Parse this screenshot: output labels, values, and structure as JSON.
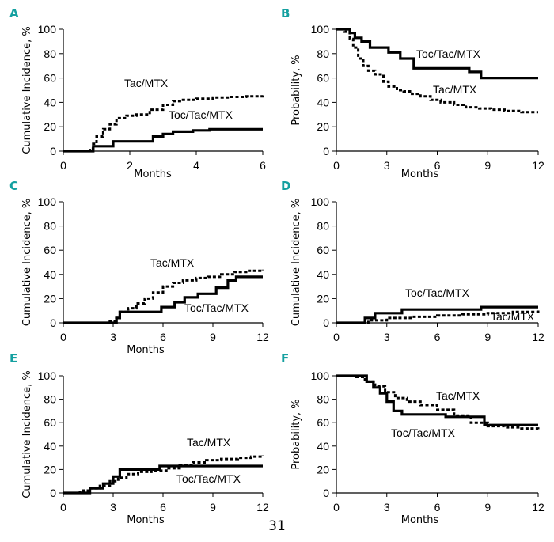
{
  "page_number": "31",
  "colors": {
    "panel_letter": "#14a0a0",
    "line": "#000000"
  },
  "chart_data": [
    {
      "panel": "A",
      "type": "line",
      "xlabel": "Months",
      "ylabel": "Cumulative Incidence, %",
      "xlim": [
        0,
        6
      ],
      "ylim": [
        0,
        100
      ],
      "xticks": [
        0,
        2,
        4,
        6
      ],
      "yticks": [
        0,
        20,
        40,
        60,
        80,
        100
      ],
      "grid": false,
      "series": [
        {
          "name": "Tac/MTX",
          "style": "dashed",
          "x": [
            0,
            0.8,
            0.9,
            1.0,
            1.2,
            1.4,
            1.6,
            1.9,
            2.2,
            2.6,
            3.0,
            3.3,
            3.6,
            4.0,
            4.5,
            5.0,
            5.5,
            6.0
          ],
          "y": [
            0,
            2,
            6,
            12,
            18,
            22,
            27,
            29,
            30,
            34,
            38,
            41,
            42,
            43,
            44,
            44.5,
            45,
            46
          ]
        },
        {
          "name": "Toc/Tac/MTX",
          "style": "solid",
          "x": [
            0,
            0.9,
            1.5,
            2.7,
            3.0,
            3.3,
            3.9,
            4.4,
            6.0
          ],
          "y": [
            0,
            4,
            8,
            12,
            14,
            16,
            17,
            18,
            18
          ]
        }
      ]
    },
    {
      "panel": "B",
      "type": "line",
      "xlabel": "Months",
      "ylabel": "Probability, %",
      "xlim": [
        0,
        12
      ],
      "ylim": [
        0,
        100
      ],
      "xticks": [
        0,
        3,
        6,
        9,
        12
      ],
      "yticks": [
        0,
        20,
        40,
        60,
        80,
        100
      ],
      "grid": false,
      "series": [
        {
          "name": "Toc/Tac/MTX",
          "style": "solid",
          "x": [
            0,
            0.8,
            1.1,
            1.5,
            2.0,
            3.1,
            3.8,
            4.6,
            6.5,
            7.9,
            8.6,
            12.0
          ],
          "y": [
            100,
            97,
            93,
            90,
            85,
            81,
            76,
            68,
            68,
            65,
            60,
            60
          ]
        },
        {
          "name": "Tac/MTX",
          "style": "dashed",
          "x": [
            0,
            0.5,
            0.8,
            1.0,
            1.3,
            1.6,
            1.9,
            2.3,
            2.8,
            3.1,
            3.6,
            4.0,
            4.5,
            5.0,
            5.6,
            6.2,
            7.0,
            7.7,
            8.5,
            9.2,
            10.0,
            11.0,
            12.0
          ],
          "y": [
            100,
            98,
            92,
            85,
            76,
            70,
            66,
            63,
            57,
            53,
            50,
            49,
            47,
            45,
            42,
            40,
            38,
            36,
            35,
            34,
            33,
            32,
            32
          ]
        }
      ]
    },
    {
      "panel": "C",
      "type": "line",
      "xlabel": "Months",
      "ylabel": "Cumulative Incidence, %",
      "xlim": [
        0,
        12
      ],
      "ylim": [
        0,
        100
      ],
      "xticks": [
        0,
        3,
        6,
        9,
        12
      ],
      "yticks": [
        0,
        20,
        40,
        60,
        80,
        100
      ],
      "grid": false,
      "series": [
        {
          "name": "Tac/MTX",
          "style": "dashed",
          "x": [
            0,
            2.8,
            3.1,
            3.4,
            3.9,
            4.4,
            4.9,
            5.4,
            6.0,
            6.6,
            7.2,
            8.0,
            8.7,
            9.5,
            10.3,
            11.0,
            12.0
          ],
          "y": [
            0,
            1,
            4,
            9,
            12,
            16,
            20,
            25,
            30,
            33,
            35,
            37,
            38,
            40,
            42,
            43,
            44
          ]
        },
        {
          "name": "Toc/Tac/MTX",
          "style": "solid",
          "x": [
            0,
            3.2,
            3.4,
            5.3,
            5.9,
            6.7,
            7.3,
            8.1,
            9.2,
            9.9,
            10.4,
            12.0
          ],
          "y": [
            0,
            4,
            9,
            9,
            13,
            17,
            21,
            24,
            29,
            35,
            38,
            38
          ]
        }
      ]
    },
    {
      "panel": "D",
      "type": "line",
      "xlabel": "",
      "ylabel": "Cumulative Incidence, %",
      "xlim": [
        0,
        12
      ],
      "ylim": [
        0,
        100
      ],
      "xticks": [
        0,
        3,
        6,
        9,
        12
      ],
      "yticks": [
        0,
        20,
        40,
        60,
        80,
        100
      ],
      "grid": false,
      "series": [
        {
          "name": "Toc/Tac/MTX",
          "style": "solid",
          "x": [
            0,
            1.7,
            2.3,
            3.9,
            8.6,
            12.0
          ],
          "y": [
            0,
            4,
            8,
            11,
            13,
            13
          ]
        },
        {
          "name": "Tac/MTX",
          "style": "dashed",
          "x": [
            0,
            1.9,
            3.0,
            4.5,
            6.0,
            7.5,
            9.0,
            10.5,
            12.0
          ],
          "y": [
            0,
            2,
            4,
            5,
            6,
            7,
            8,
            9,
            11
          ]
        }
      ]
    },
    {
      "panel": "E",
      "type": "line",
      "xlabel": "Months",
      "ylabel": "Cumulative Incidence, %",
      "xlim": [
        0,
        12
      ],
      "ylim": [
        0,
        100
      ],
      "xticks": [
        0,
        3,
        6,
        9,
        12
      ],
      "yticks": [
        0,
        20,
        40,
        60,
        80,
        100
      ],
      "grid": false,
      "series": [
        {
          "name": "Tac/MTX",
          "style": "dashed",
          "x": [
            0,
            1.0,
            1.6,
            2.2,
            2.8,
            3.3,
            3.8,
            4.5,
            5.3,
            6.2,
            7.0,
            7.8,
            8.6,
            9.5,
            10.5,
            11.3,
            12.0
          ],
          "y": [
            0,
            2,
            4,
            6,
            10,
            13,
            16,
            18,
            19,
            21,
            24,
            26,
            28,
            29,
            30,
            31,
            32
          ]
        },
        {
          "name": "Toc/Tac/MTX",
          "style": "solid",
          "x": [
            0,
            1.6,
            2.4,
            3.0,
            3.4,
            5.8,
            12.0
          ],
          "y": [
            0,
            4,
            8,
            14,
            20,
            23,
            23
          ]
        }
      ]
    },
    {
      "panel": "F",
      "type": "line",
      "xlabel": "Months",
      "ylabel": "Probability, %",
      "xlim": [
        0,
        12
      ],
      "ylim": [
        0,
        100
      ],
      "xticks": [
        0,
        3,
        6,
        9,
        12
      ],
      "yticks": [
        0,
        20,
        40,
        60,
        80,
        100
      ],
      "grid": false,
      "series": [
        {
          "name": "Toc/Tac/MTX",
          "style": "solid",
          "x": [
            0,
            1.5,
            1.8,
            2.2,
            2.6,
            3.0,
            3.4,
            3.9,
            5.5,
            6.5,
            8.4,
            8.8,
            12.0
          ],
          "y": [
            100,
            100,
            95,
            90,
            85,
            78,
            70,
            67,
            67,
            65,
            65,
            58,
            58
          ]
        },
        {
          "name": "Tac/MTX",
          "style": "dashed",
          "x": [
            0,
            1.2,
            1.7,
            2.3,
            2.9,
            3.5,
            4.2,
            5.0,
            6.0,
            7.0,
            8.0,
            9.0,
            10.0,
            11.0,
            12.0
          ],
          "y": [
            100,
            99,
            95,
            91,
            86,
            81,
            78,
            75,
            71,
            66,
            60,
            57,
            56,
            55,
            54
          ]
        }
      ]
    }
  ]
}
